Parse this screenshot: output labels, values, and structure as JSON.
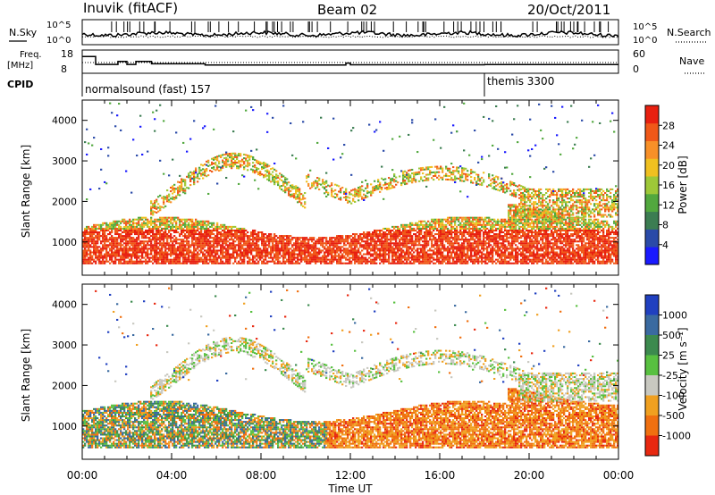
{
  "header": {
    "station": "Inuvik (fitACF)",
    "beam": "Beam 02",
    "date": "20/Oct/2011"
  },
  "noise_panel": {
    "left_label": "N.Sky",
    "right_label": "N.Search",
    "left_ticks": [
      "10^5",
      "10^0"
    ],
    "right_ticks": [
      "10^5",
      "10^0"
    ]
  },
  "freq_panel": {
    "left_label_1": "Freq.",
    "left_label_2": "[MHz]",
    "left_ticks": [
      "18",
      "8"
    ],
    "right_ticks": [
      "60",
      "0"
    ],
    "right_label": "Nave"
  },
  "cpid_panel": {
    "label": "CPID",
    "programs": [
      {
        "name": "normalsound (fast) 157",
        "start_hour": 0
      },
      {
        "name": "themis 3300",
        "start_hour": 18
      }
    ]
  },
  "chart_data": [
    {
      "type": "heatmap",
      "name": "Power",
      "ylabel": "Slant Range [km]",
      "ylim": [
        180,
        4500
      ],
      "yticks": [
        "1000",
        "2000",
        "3000",
        "4000"
      ],
      "xlim": [
        "00:00",
        "24:00"
      ],
      "xticks": [],
      "colorbar": {
        "label": "Power [dB]",
        "tick_labels": [
          "4",
          "8",
          "12",
          "16",
          "20",
          "24",
          "28"
        ],
        "colors": [
          "#1a1aff",
          "#2a4aa8",
          "#3c7d52",
          "#52a83e",
          "#9ec838",
          "#f0c020",
          "#f89028",
          "#f05818",
          "#e82010"
        ]
      }
    },
    {
      "type": "heatmap",
      "name": "Velocity",
      "ylabel": "Slant Range [km]",
      "ylim": [
        180,
        4500
      ],
      "yticks": [
        "1000",
        "2000",
        "3000",
        "4000"
      ],
      "xlim": [
        "00:00",
        "24:00"
      ],
      "xticks": [
        "00:00",
        "04:00",
        "08:00",
        "12:00",
        "16:00",
        "20:00",
        "00:00"
      ],
      "xlabel": "Time UT",
      "colorbar": {
        "label": "Velocity [m s⁻¹]",
        "tick_labels": [
          "1000",
          "500",
          "25",
          "-25",
          "-100",
          "-500",
          "-1000"
        ],
        "colors": [
          "#2040c0",
          "#3a6aa0",
          "#3c8a4e",
          "#58c040",
          "#c8c8c0",
          "#f0a020",
          "#f07010",
          "#e82810"
        ]
      }
    }
  ]
}
